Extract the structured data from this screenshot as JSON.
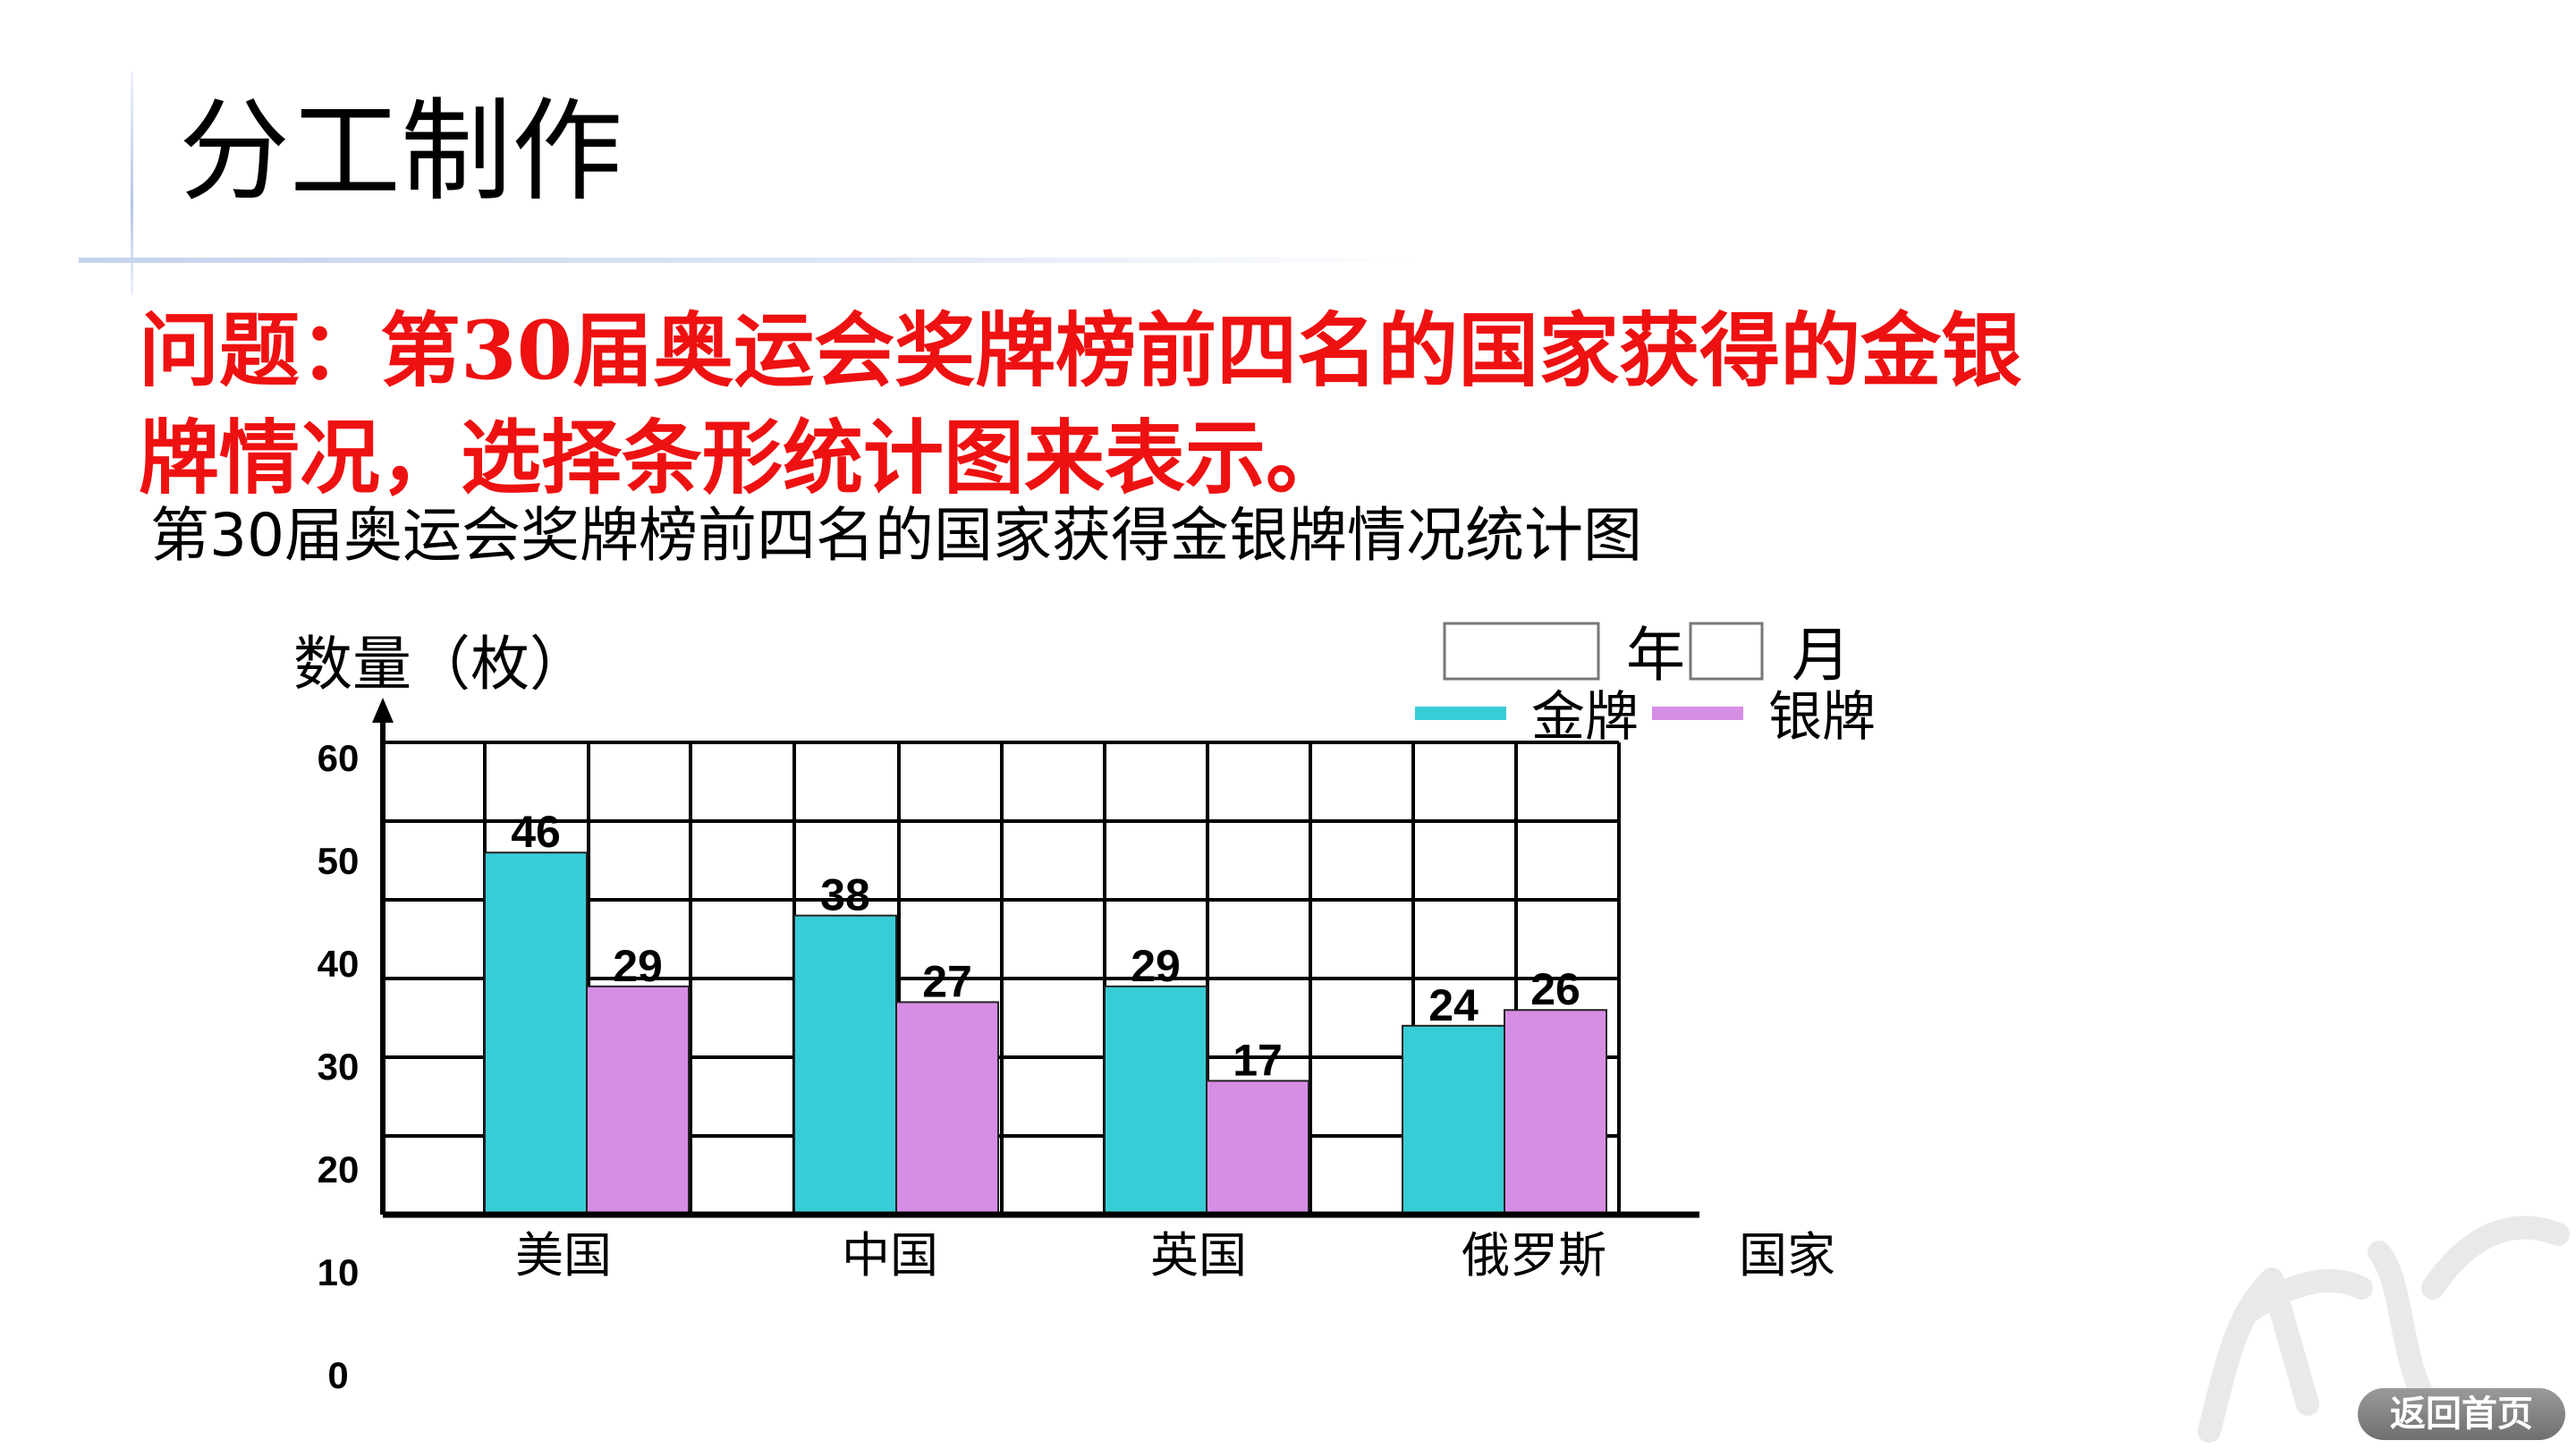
{
  "slide": {
    "title": "分工制作",
    "question_line1": "问题：第30届奥运会奖牌榜前四名的国家获得的金银",
    "question_line2": "牌情况，选择条形统计图来表示。",
    "home_button": "返回首页"
  },
  "chart_data": {
    "type": "bar",
    "title": "第30届奥运会奖牌榜前四名的国家获得金银牌情况统计图",
    "ylabel": "数量（枚）",
    "xlabel": "国家",
    "date_year_label": "年",
    "date_month_label": "月",
    "y_tick_labels": [
      "60",
      "50",
      "40",
      "30",
      "20",
      "10",
      "0"
    ],
    "categories": [
      "美国",
      "中国",
      "英国",
      "俄罗斯"
    ],
    "series": [
      {
        "name": "金牌",
        "color": "#38cdd6",
        "values": [
          46,
          38,
          29,
          24
        ]
      },
      {
        "name": "银牌",
        "color": "#d68ee5",
        "values": [
          29,
          27,
          17,
          26
        ]
      }
    ],
    "ylim": [
      0,
      60
    ],
    "grid": true,
    "legend_position": "top-right"
  }
}
